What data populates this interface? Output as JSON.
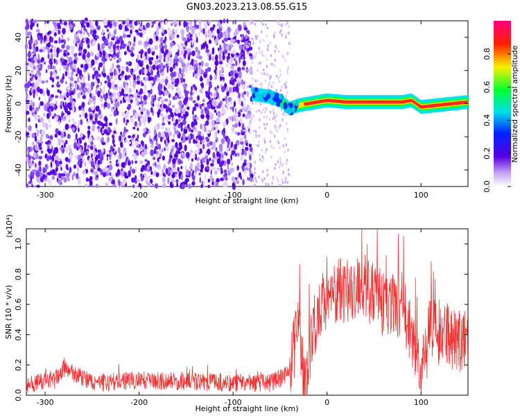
{
  "title": "GN03.2023.213.08.55.G15",
  "chart_data": [
    {
      "type": "heatmap",
      "xlabel": "Height of straight line (km)",
      "ylabel": "Frequency (Hz)",
      "xlim": [
        -320,
        150
      ],
      "ylim": [
        -50,
        50
      ],
      "xticks": [
        -300,
        -200,
        -100,
        0,
        100
      ],
      "yticks": [
        -40,
        -20,
        0,
        20,
        40
      ],
      "colorbar": {
        "label": "Normalized spectral amplitude",
        "range": [
          0.0,
          1.0
        ],
        "ticks": [
          "0.0",
          "0.2",
          "0.4",
          "0.6",
          "0.8"
        ],
        "colormap": "rainbow (white-purple-blue-cyan-green-yellow-red-pink)"
      },
      "features": {
        "noise_region_x": [
          -320,
          -80
        ],
        "sparse_noise_x": [
          -80,
          -40
        ],
        "signal_line": {
          "x": [
            -80,
            -60,
            -50,
            -40,
            -30,
            -20,
            0,
            20,
            50,
            80,
            90,
            100,
            150
          ],
          "freq": [
            6,
            4,
            2,
            -3,
            -1,
            0,
            2,
            1,
            1,
            1,
            2,
            -2,
            1
          ]
        }
      }
    },
    {
      "type": "line",
      "xlabel": "Height of straight line (km)",
      "ylabel": "SNR (10 * v/v)",
      "yscale_label": "(x10⁴)",
      "xlim": [
        -320,
        150
      ],
      "ylim": [
        0.0,
        1.1
      ],
      "xticks": [
        -300,
        -200,
        -100,
        0,
        100
      ],
      "yticks": [
        "0.0",
        "0.2",
        "0.4",
        "0.6",
        "0.8",
        "1.0"
      ],
      "color": "#ee3333",
      "series": [
        {
          "x": [
            -320,
            -290,
            -280,
            -250,
            -200,
            -150,
            -100,
            -60,
            -40,
            -30,
            -25,
            -20,
            -10,
            0,
            20,
            40,
            60,
            80,
            95,
            100,
            110,
            130,
            150
          ],
          "values": [
            0.07,
            0.1,
            0.18,
            0.08,
            0.1,
            0.09,
            0.08,
            0.08,
            0.15,
            0.45,
            0.1,
            0.25,
            0.55,
            0.65,
            0.7,
            0.72,
            0.6,
            0.6,
            0.3,
            0.1,
            0.45,
            0.38,
            0.35
          ]
        }
      ]
    }
  ]
}
